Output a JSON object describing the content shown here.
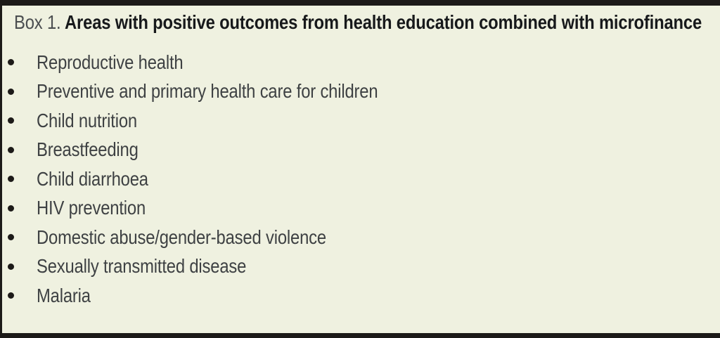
{
  "box": {
    "label": "Box 1.",
    "title": "Areas with positive outcomes from health education combined with microfinance"
  },
  "list": {
    "items": [
      "Reproductive health",
      "Preventive and primary health care for children",
      "Child nutrition",
      "Breastfeeding",
      "Child diarrhoea",
      "HIV prevention",
      "Domestic abuse/gender-based violence",
      "Sexually transmitted disease",
      "Malaria"
    ]
  },
  "colors": {
    "background": "#EFF1E0",
    "rule": "#1C1A18",
    "title_text": "#17191B",
    "box_label_text": "#4B4E50",
    "list_text": "#3E4143",
    "bullet": "#1C1A18"
  }
}
